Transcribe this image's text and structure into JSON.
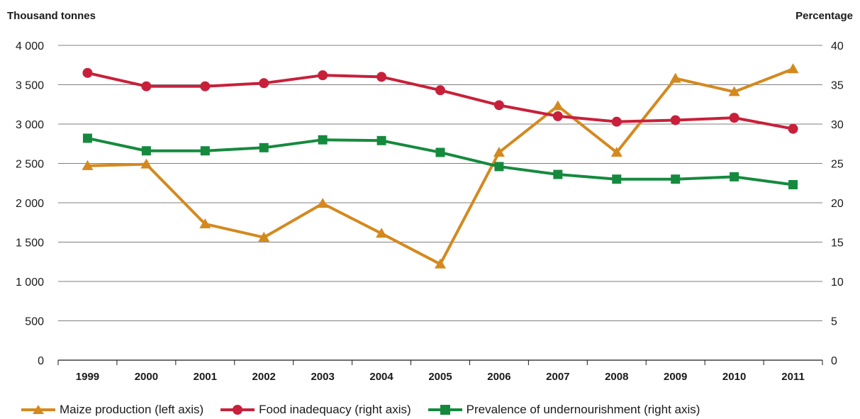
{
  "chart_data": {
    "type": "line",
    "ylabel_left": "Thousand tonnes",
    "ylabel_right": "Percentage",
    "x": [
      "1999",
      "2000",
      "2001",
      "2002",
      "2003",
      "2004",
      "2005",
      "2006",
      "2007",
      "2008",
      "2009",
      "2010",
      "2011"
    ],
    "ylim_left": [
      0,
      4000
    ],
    "ylim_right": [
      0,
      40
    ],
    "yticks_left": [
      "0",
      "500",
      "1 000",
      "1 500",
      "2 000",
      "2 500",
      "3 000",
      "3 500",
      "4 000"
    ],
    "yticks_right": [
      "0",
      "5",
      "10",
      "15",
      "20",
      "25",
      "30",
      "35",
      "40"
    ],
    "grid": true,
    "legend_position": "bottom",
    "series": [
      {
        "name": "Maize production (left axis)",
        "axis": "left",
        "marker": "triangle",
        "color": "#d4891e",
        "values": [
          2470,
          2490,
          1730,
          1560,
          1990,
          1610,
          1220,
          2640,
          3230,
          2640,
          3580,
          3410,
          3700
        ]
      },
      {
        "name": "Food inadequacy (right axis)",
        "axis": "right",
        "marker": "circle",
        "color": "#c8203a",
        "values": [
          36.5,
          34.8,
          34.8,
          35.2,
          36.2,
          36.0,
          34.3,
          32.4,
          31.0,
          30.3,
          30.5,
          30.8,
          29.4
        ]
      },
      {
        "name": "Prevalence of undernourishment (right axis)",
        "axis": "right",
        "marker": "square",
        "color": "#158a3e",
        "values": [
          28.2,
          26.6,
          26.6,
          27.0,
          28.0,
          27.9,
          26.4,
          24.6,
          23.6,
          23.0,
          23.0,
          23.3,
          22.3
        ]
      }
    ]
  }
}
